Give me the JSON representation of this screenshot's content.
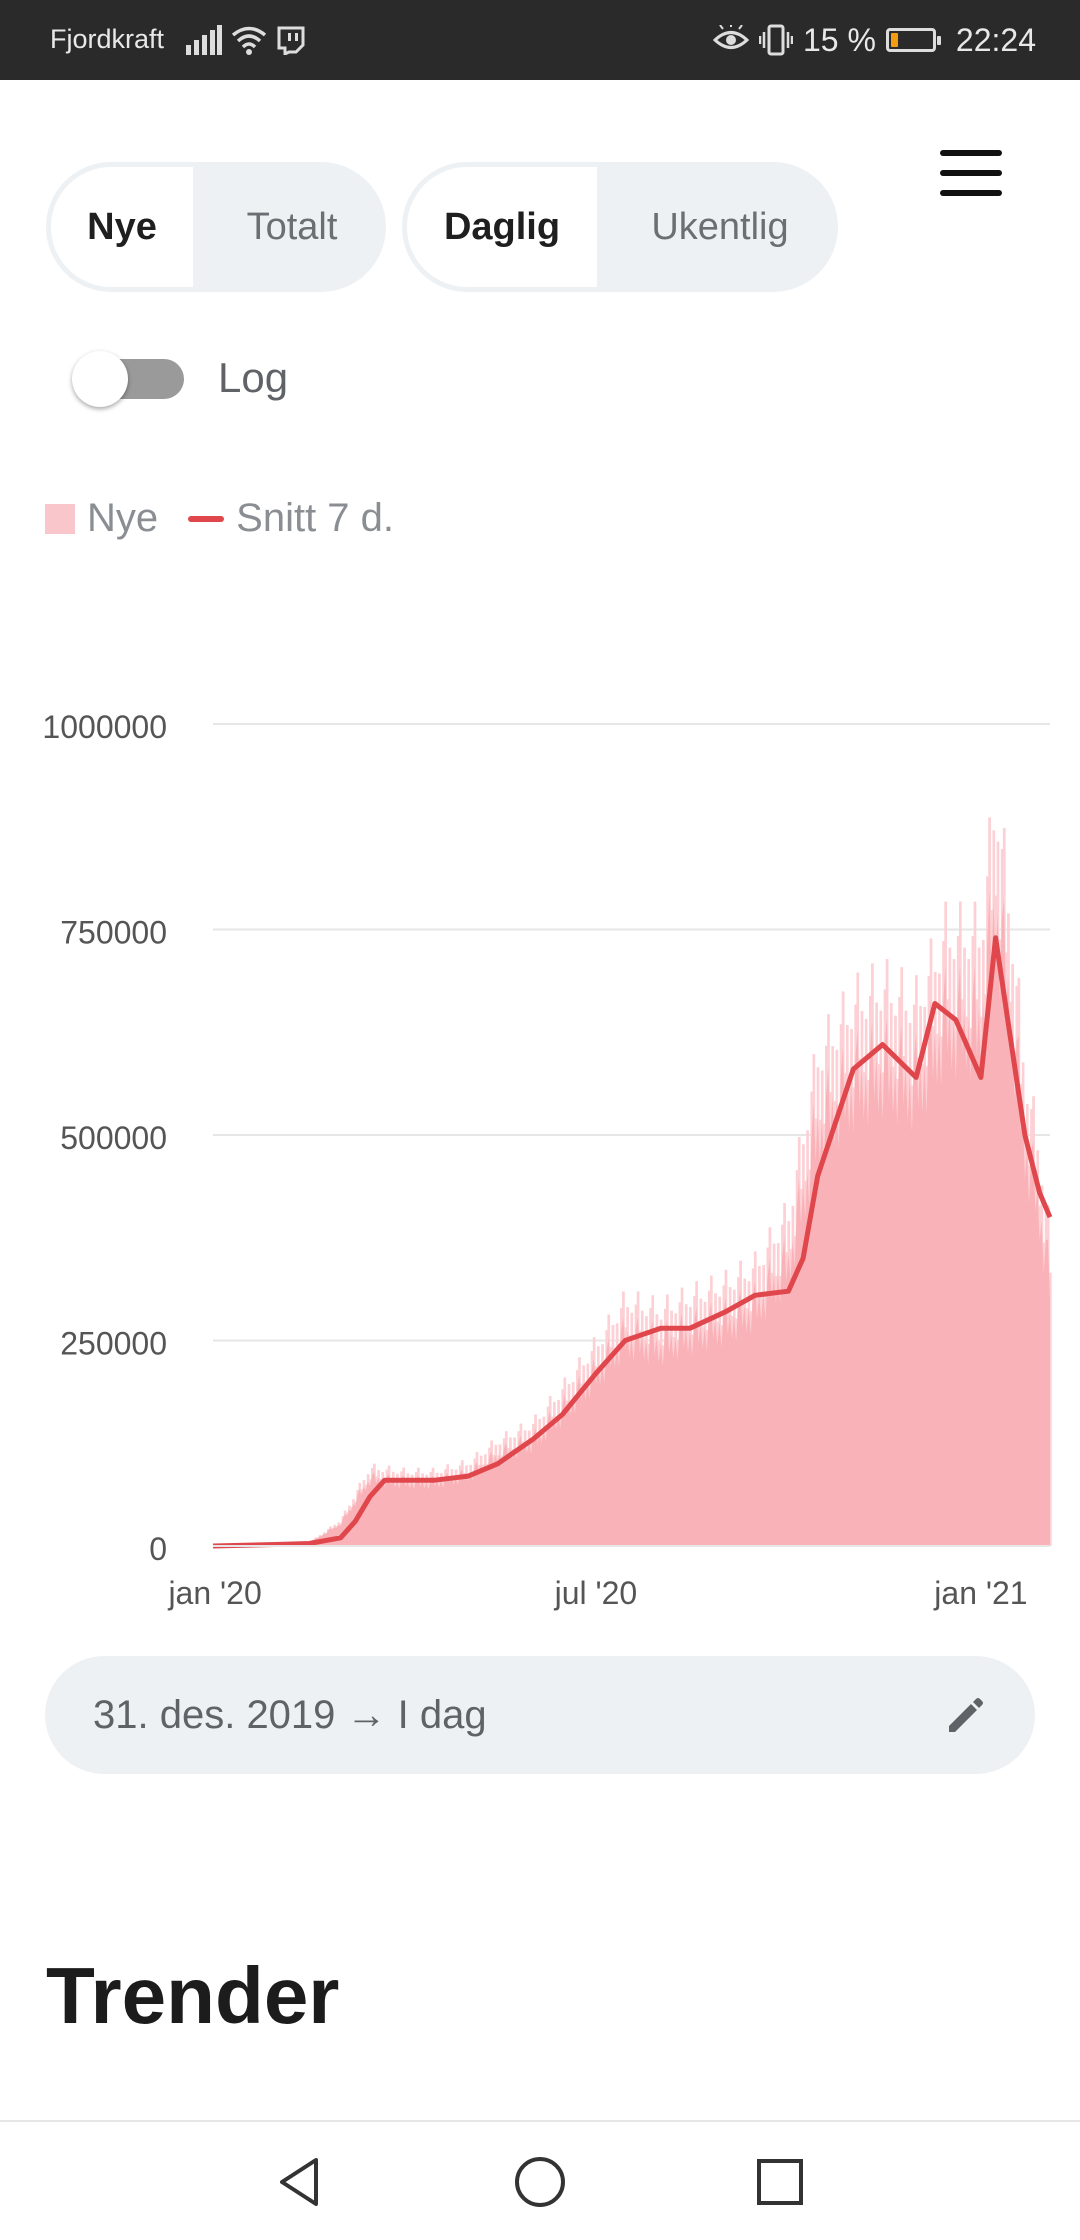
{
  "status_bar": {
    "carrier": "Fjordkraft",
    "battery_percent": "15 %",
    "time": "22:24",
    "battery_color": "#f39c12"
  },
  "controls": {
    "metric_toggle": [
      "Nye",
      "Totalt"
    ],
    "metric_selected": "Nye",
    "period_toggle": [
      "Daglig",
      "Ukentlig"
    ],
    "period_selected": "Daglig",
    "log_label": "Log",
    "log_enabled": false
  },
  "legend": {
    "bar_label": "Nye",
    "line_label": "Snitt 7 d."
  },
  "colors": {
    "bar": "#f9b3b8",
    "bar_spike": "#fcd0d4",
    "line": "#e0474c",
    "grid": "#e6e6e6",
    "pill_bg": "#eef1f4"
  },
  "chart_data": {
    "type": "bar",
    "title": "",
    "xlabel": "",
    "ylabel": "",
    "ylim": [
      0,
      1000000
    ],
    "yticks": [
      "0",
      "250000",
      "500000",
      "750000",
      "1000000"
    ],
    "xticks": [
      "jan '20",
      "jul '20",
      "jan '21"
    ],
    "grid": true,
    "legend_position": "top-left",
    "series": [
      {
        "name": "Nye",
        "kind": "bar",
        "x": [
          "2019-12-31",
          "2020-01-15",
          "2020-02-01",
          "2020-02-15",
          "2020-03-01",
          "2020-03-15",
          "2020-04-01",
          "2020-04-15",
          "2020-05-01",
          "2020-05-15",
          "2020-06-01",
          "2020-06-15",
          "2020-07-01",
          "2020-07-15",
          "2020-08-01",
          "2020-08-15",
          "2020-09-01",
          "2020-09-15",
          "2020-10-01",
          "2020-10-15",
          "2020-11-01",
          "2020-11-15",
          "2020-12-01",
          "2020-12-15",
          "2021-01-01",
          "2021-01-08",
          "2021-01-15",
          "2021-01-22",
          "2021-01-29",
          "2021-02-03"
        ],
        "values": [
          0,
          2000,
          3000,
          4000,
          30000,
          90000,
          85000,
          85000,
          95000,
          120000,
          140000,
          180000,
          230000,
          280000,
          270000,
          285000,
          300000,
          320000,
          380000,
          560000,
          620000,
          640000,
          620000,
          700000,
          700000,
          860000,
          720000,
          540000,
          450000,
          350000
        ]
      },
      {
        "name": "Snitt 7 d.",
        "kind": "line",
        "x": [
          "2019-12-31",
          "2020-01-15",
          "2020-02-01",
          "2020-02-15",
          "2020-03-01",
          "2020-03-08",
          "2020-03-15",
          "2020-03-22",
          "2020-04-01",
          "2020-04-15",
          "2020-05-01",
          "2020-05-15",
          "2020-06-01",
          "2020-06-15",
          "2020-07-01",
          "2020-07-15",
          "2020-08-01",
          "2020-08-15",
          "2020-09-01",
          "2020-09-15",
          "2020-10-01",
          "2020-10-08",
          "2020-10-15",
          "2020-11-01",
          "2020-11-15",
          "2020-12-01",
          "2020-12-10",
          "2020-12-20",
          "2021-01-01",
          "2021-01-08",
          "2021-01-15",
          "2021-01-22",
          "2021-01-29",
          "2021-02-03"
        ],
        "values": [
          0,
          1000,
          2000,
          3000,
          10000,
          30000,
          60000,
          80000,
          80000,
          80000,
          85000,
          100000,
          130000,
          160000,
          210000,
          250000,
          265000,
          265000,
          285000,
          305000,
          310000,
          350000,
          450000,
          580000,
          610000,
          570000,
          660000,
          640000,
          570000,
          740000,
          620000,
          500000,
          430000,
          400000
        ]
      }
    ]
  },
  "date_range": {
    "label": "31. des. 2019 → I dag"
  },
  "section": {
    "title": "Trender"
  },
  "nav": {
    "icons": [
      "back-icon",
      "home-icon",
      "recents-icon"
    ]
  }
}
